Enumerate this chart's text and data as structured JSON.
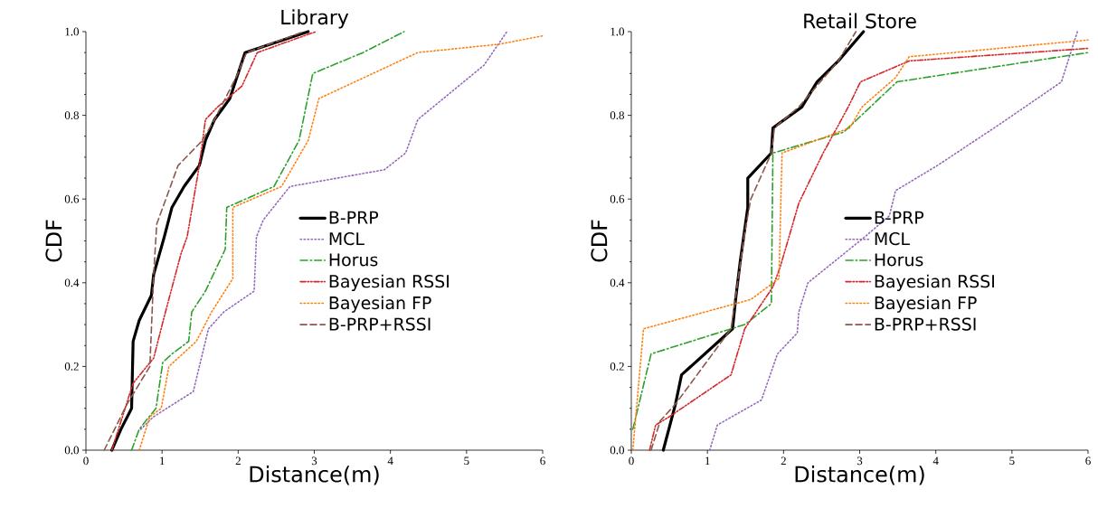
{
  "chart_data": [
    {
      "type": "line",
      "title": "Library",
      "xlabel": "Distance(m)",
      "ylabel": "CDF",
      "xlim": [
        0,
        6
      ],
      "ylim": [
        0,
        1
      ],
      "xticks": [
        0,
        1,
        2,
        3,
        4,
        5,
        6
      ],
      "yticks": [
        {
          "value": 0,
          "label": "0.0"
        },
        {
          "value": 0.2,
          "label": "0.2"
        },
        {
          "value": 0.4,
          "label": "0.4"
        },
        {
          "value": 0.6,
          "label": "0.6"
        },
        {
          "value": 0.8,
          "label": "0.8"
        },
        {
          "value": 1,
          "label": "1.0"
        }
      ],
      "legend": "right",
      "grid": false,
      "marker": "none",
      "series": [
        {
          "name": "B-PRP",
          "color": "#000000",
          "line_style": "solid",
          "x": [
            0.34,
            0.46,
            0.6,
            0.62,
            0.7,
            0.86,
            0.89,
            1.03,
            1.13,
            1.29,
            1.49,
            1.57,
            1.69,
            1.89,
            2.09,
            2.92
          ],
          "values": [
            0,
            0.05,
            0.1,
            0.26,
            0.31,
            0.37,
            0.42,
            0.51,
            0.58,
            0.63,
            0.68,
            0.74,
            0.79,
            0.84,
            0.95,
            1.0
          ]
        },
        {
          "name": "MCL",
          "color": "#9467bd",
          "line_style": "dotted",
          "x": [
            0.72,
            0.89,
            1.41,
            1.53,
            1.61,
            1.81,
            2.21,
            2.24,
            2.33,
            2.68,
            3.92,
            4.2,
            4.36,
            5.23,
            5.53
          ],
          "values": [
            0.05,
            0.08,
            0.14,
            0.23,
            0.29,
            0.33,
            0.38,
            0.51,
            0.55,
            0.63,
            0.67,
            0.71,
            0.79,
            0.92,
            1.0
          ]
        },
        {
          "name": "Horus",
          "color": "#2ca02c",
          "line_style": "dashdot",
          "x": [
            0.6,
            0.7,
            0.92,
            1.01,
            1.13,
            1.35,
            1.39,
            1.57,
            1.83,
            1.85,
            2.47,
            2.8,
            2.98,
            3.64,
            4.18
          ],
          "values": [
            0,
            0.05,
            0.1,
            0.21,
            0.23,
            0.26,
            0.33,
            0.38,
            0.48,
            0.58,
            0.63,
            0.74,
            0.9,
            0.95,
            1.0
          ]
        },
        {
          "name": "Bayesian RSSI",
          "color": "#d62728",
          "line_style": "dashdotdot",
          "x": [
            0.34,
            0.62,
            0.89,
            1.03,
            1.25,
            1.33,
            1.49,
            1.57,
            1.73,
            2.05,
            2.25,
            3.02
          ],
          "values": [
            0,
            0.16,
            0.22,
            0.32,
            0.47,
            0.51,
            0.68,
            0.79,
            0.82,
            0.87,
            0.95,
            1.0
          ]
        },
        {
          "name": "Bayesian FP",
          "color": "#ff7f0e",
          "line_style": "dotted",
          "x": [
            0.7,
            0.84,
            0.99,
            1.09,
            1.45,
            1.65,
            1.93,
            1.93,
            2.57,
            2.92,
            3.06,
            4.36,
            5.43,
            6.0
          ],
          "values": [
            0,
            0.08,
            0.1,
            0.2,
            0.26,
            0.33,
            0.41,
            0.58,
            0.63,
            0.74,
            0.84,
            0.95,
            0.97,
            0.99
          ]
        },
        {
          "name": "B-PRP+RSSI",
          "color": "#8c564b",
          "line_style": "dashed",
          "x": [
            0.24,
            0.54,
            0.84,
            0.89,
            0.93,
            1.21,
            1.53,
            1.69,
            1.97,
            2.11,
            2.86
          ],
          "values": [
            0,
            0.11,
            0.2,
            0.42,
            0.54,
            0.68,
            0.74,
            0.79,
            0.89,
            0.95,
            1.0
          ]
        }
      ]
    },
    {
      "type": "line",
      "title": "Retail Store",
      "xlabel": "Distance(m)",
      "ylabel": "CDF",
      "xlim": [
        0,
        6
      ],
      "ylim": [
        0,
        1
      ],
      "xticks": [
        0,
        1,
        2,
        3,
        4,
        5,
        6
      ],
      "yticks": [
        {
          "value": 0,
          "label": "0.0"
        },
        {
          "value": 0.2,
          "label": "0.2"
        },
        {
          "value": 0.4,
          "label": "0.4"
        },
        {
          "value": 0.6,
          "label": "0.6"
        },
        {
          "value": 0.8,
          "label": "0.8"
        },
        {
          "value": 1,
          "label": "1.0"
        }
      ],
      "legend": "right",
      "grid": false,
      "marker": "none",
      "series": [
        {
          "name": "B-PRP",
          "color": "#000000",
          "line_style": "solid",
          "x": [
            0.42,
            0.58,
            0.66,
            1.33,
            1.37,
            1.43,
            1.53,
            1.53,
            1.84,
            1.86,
            2.24,
            2.44,
            2.72,
            3.05
          ],
          "values": [
            0,
            0.11,
            0.18,
            0.29,
            0.36,
            0.45,
            0.58,
            0.65,
            0.71,
            0.77,
            0.82,
            0.88,
            0.93,
            1.0
          ]
        },
        {
          "name": "MCL",
          "color": "#9467bd",
          "line_style": "dotted",
          "x": [
            1.03,
            1.13,
            1.71,
            1.92,
            2.18,
            2.2,
            2.32,
            3.07,
            3.39,
            3.47,
            4.02,
            4.85,
            5.65,
            5.86
          ],
          "values": [
            0,
            0.06,
            0.12,
            0.23,
            0.28,
            0.33,
            0.4,
            0.51,
            0.56,
            0.62,
            0.68,
            0.78,
            0.88,
            1.0
          ]
        },
        {
          "name": "Horus",
          "color": "#2ca02c",
          "line_style": "dashdot",
          "x": [
            0.02,
            0.26,
            1.31,
            1.49,
            1.84,
            1.86,
            2.79,
            3.49,
            6.0
          ],
          "values": [
            0.05,
            0.23,
            0.29,
            0.3,
            0.35,
            0.71,
            0.76,
            0.88,
            0.95
          ]
        },
        {
          "name": "Bayesian RSSI",
          "color": "#d62728",
          "line_style": "dashdotdot",
          "x": [
            0.24,
            0.32,
            0.5,
            1.31,
            1.49,
            1.86,
            1.96,
            2.2,
            2.52,
            2.85,
            3.01,
            3.65,
            6.0
          ],
          "values": [
            0,
            0.06,
            0.08,
            0.18,
            0.29,
            0.39,
            0.44,
            0.59,
            0.71,
            0.82,
            0.88,
            0.93,
            0.96
          ]
        },
        {
          "name": "Bayesian FP",
          "color": "#ff7f0e",
          "line_style": "dotted",
          "x": [
            0.02,
            0.16,
            1.57,
            1.94,
            1.98,
            2.87,
            3.03,
            3.47,
            3.65,
            6.0
          ],
          "values": [
            0,
            0.29,
            0.36,
            0.41,
            0.71,
            0.77,
            0.82,
            0.89,
            0.94,
            0.98
          ]
        },
        {
          "name": "B-PRP+RSSI",
          "color": "#8c564b",
          "line_style": "dashed",
          "x": [
            0.26,
            0.38,
            0.58,
            1.31,
            1.49,
            1.57,
            1.84,
            1.88,
            2.2,
            2.72,
            2.95
          ],
          "values": [
            0,
            0.07,
            0.11,
            0.29,
            0.52,
            0.6,
            0.71,
            0.77,
            0.82,
            0.93,
            1.0
          ]
        }
      ]
    }
  ]
}
